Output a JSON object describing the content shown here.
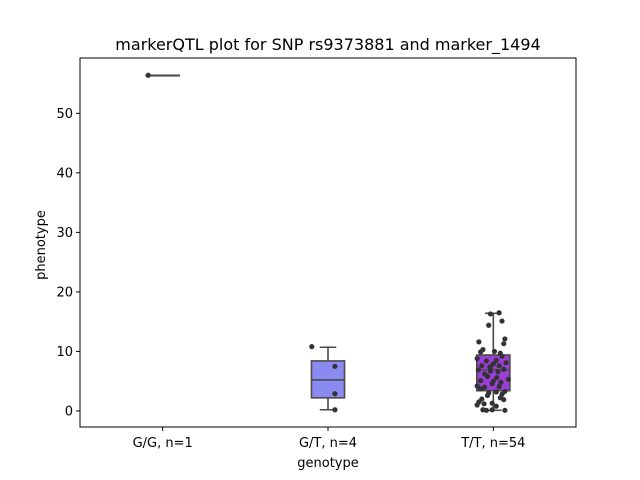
{
  "chart_data": {
    "type": "box",
    "title": "markerQTL plot for SNP rs9373881 and marker_1494",
    "xlabel": "genotype",
    "ylabel": "phenotype",
    "ylim": [
      -2.7,
      59.3
    ],
    "yticks": [
      0,
      10,
      20,
      30,
      40,
      50
    ],
    "categories": [
      "G/G, n=1",
      "G/T, n=4",
      "T/T, n=54"
    ],
    "colors": [
      "#8a8af0",
      "#8a8af0",
      "#9c3fd8"
    ],
    "line_color": "#4a4a4a",
    "point_color": "#333333",
    "boxes": [
      {
        "q1": 56.4,
        "median": 56.4,
        "q3": 56.4,
        "whisker_low": 56.4,
        "whisker_high": 56.4
      },
      {
        "q1": 2.2,
        "median": 5.2,
        "q3": 8.4,
        "whisker_low": 0.2,
        "whisker_high": 10.7
      },
      {
        "q1": 3.4,
        "median": 6.9,
        "q3": 9.4,
        "whisker_low": 0.1,
        "whisker_high": 16.4
      }
    ],
    "points": [
      [
        [
          -0.25,
          56.4
        ]
      ],
      [
        [
          -0.28,
          10.8
        ],
        [
          0.12,
          7.5
        ],
        [
          0.12,
          2.9
        ],
        [
          0.12,
          0.2
        ]
      ],
      [
        [
          -0.05,
          16.3
        ],
        [
          0.1,
          16.5
        ],
        [
          -0.08,
          14.4
        ],
        [
          0.15,
          15.1
        ],
        [
          0.2,
          12.1
        ],
        [
          0.18,
          11.3
        ],
        [
          -0.25,
          11.6
        ],
        [
          -0.18,
          10.3
        ],
        [
          -0.22,
          9.9
        ],
        [
          0.02,
          10.0
        ],
        [
          0.12,
          9.7
        ],
        [
          0.15,
          9.2
        ],
        [
          -0.28,
          8.8
        ],
        [
          -0.12,
          8.4
        ],
        [
          0.05,
          8.5
        ],
        [
          0.22,
          8.1
        ],
        [
          0.0,
          7.9
        ],
        [
          -0.2,
          7.6
        ],
        [
          0.1,
          7.6
        ],
        [
          -0.05,
          7.2
        ],
        [
          0.18,
          7.0
        ],
        [
          -0.26,
          6.9
        ],
        [
          -0.05,
          6.7
        ],
        [
          0.08,
          6.6
        ],
        [
          -0.15,
          6.2
        ],
        [
          -0.1,
          5.8
        ],
        [
          0.26,
          5.3
        ],
        [
          -0.22,
          5.1
        ],
        [
          0.0,
          5.0
        ],
        [
          0.13,
          4.8
        ],
        [
          -0.02,
          4.6
        ],
        [
          -0.28,
          4.2
        ],
        [
          -0.15,
          4.0
        ],
        [
          0.1,
          4.1
        ],
        [
          -0.22,
          3.7
        ],
        [
          0.2,
          3.3
        ],
        [
          0.05,
          3.2
        ],
        [
          0.15,
          2.8
        ],
        [
          -0.1,
          2.6
        ],
        [
          0.12,
          2.2
        ],
        [
          -0.2,
          2.0
        ],
        [
          -0.25,
          1.5
        ],
        [
          0.18,
          1.9
        ],
        [
          -0.16,
          1.2
        ],
        [
          -0.28,
          1.0
        ],
        [
          -0.02,
          1.3
        ],
        [
          -0.18,
          0.2
        ],
        [
          -0.12,
          0.1
        ],
        [
          -0.02,
          0.2
        ],
        [
          0.2,
          0.1
        ],
        [
          0.05,
          0.8
        ],
        [
          -0.06,
          7.4
        ],
        [
          0.06,
          5.6
        ],
        [
          -0.08,
          3.0
        ]
      ]
    ]
  }
}
